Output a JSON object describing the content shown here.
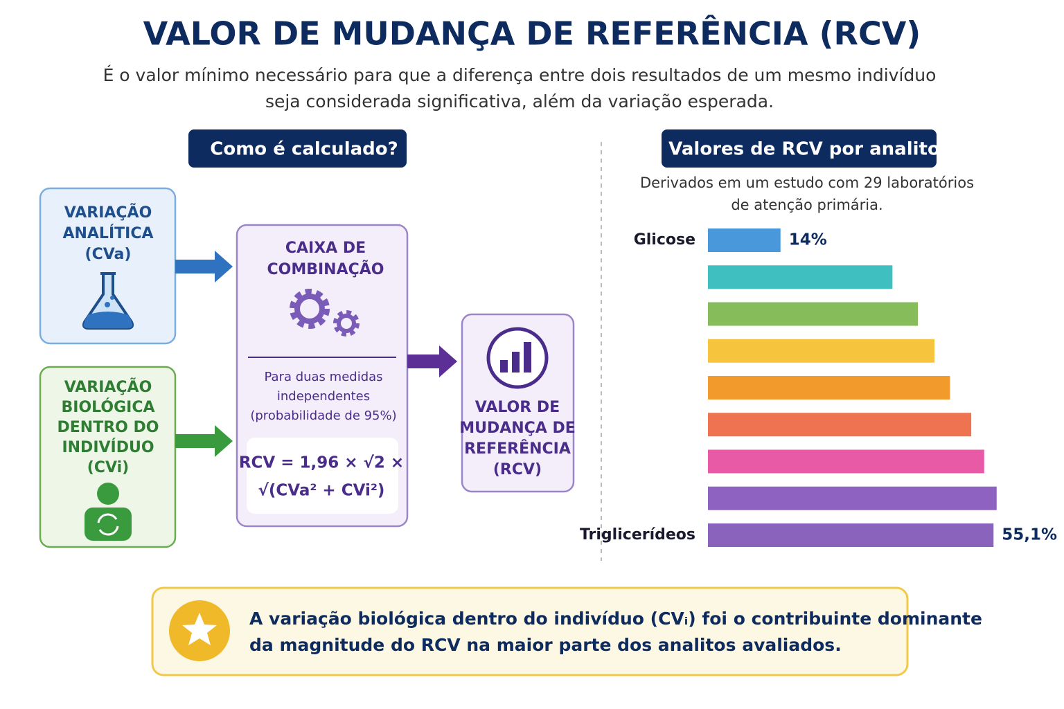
{
  "header": {
    "title": "VALOR DE MUDANÇA DE REFERÊNCIA (RCV)",
    "subtitle": [
      "É o valor mínimo necessário para que a diferença entre dois resultados de um mesmo indivíduo",
      "seja considerada significativa, além da variação esperada."
    ]
  },
  "calculation": {
    "heading": "Como é calculado?",
    "analytical": [
      "VARIAÇÃO",
      "ANALÍTICA",
      "(CVa)"
    ],
    "biological": [
      "VARIAÇÃO",
      "BIOLÓGICA",
      "DENTRO DO",
      "INDIVÍDUO",
      "(CVi)"
    ],
    "combination": {
      "title": [
        "CAIXA DE",
        "COMBINAÇÃO"
      ],
      "note": [
        "Para duas medidas",
        "independentes",
        "(probabilidade de 95%)"
      ],
      "formula": [
        "RCV = 1,96 × √2 ×",
        "√(CVa² + CVi²)"
      ]
    },
    "result": [
      "VALOR DE",
      "MUDANÇA DE",
      "REFERÊNCIA",
      "(RCV)"
    ]
  },
  "chart_data": {
    "type": "hbar",
    "title": "Valores de RCV por analito",
    "subtitle": [
      "Derivados em um estudo com 29 laboratórios",
      "de atenção primária."
    ],
    "categories": [
      "Glicose",
      null,
      null,
      null,
      null,
      null,
      null,
      null,
      "Triglicerídeos"
    ],
    "values": [
      14,
      35.6,
      40.5,
      43.7,
      46.7,
      50.8,
      53.3,
      55.7,
      55.1
    ],
    "value_labels": [
      "14%",
      null,
      null,
      null,
      null,
      null,
      null,
      null,
      "55,1%"
    ],
    "colors": [
      "#4a98dc",
      "#3fbfbf",
      "#86bd5a",
      "#f6c43d",
      "#f39a2c",
      "#ef7350",
      "#e85aa6",
      "#8e62c0",
      "#8a63bd"
    ],
    "xlim": [
      0,
      56
    ]
  },
  "footer": {
    "text": [
      "A variação biológica dentro do indivíduo (CVᵢ) foi o contribuinte dominante",
      "da magnitude do RCV na maior parte dos analitos avaliados."
    ]
  }
}
